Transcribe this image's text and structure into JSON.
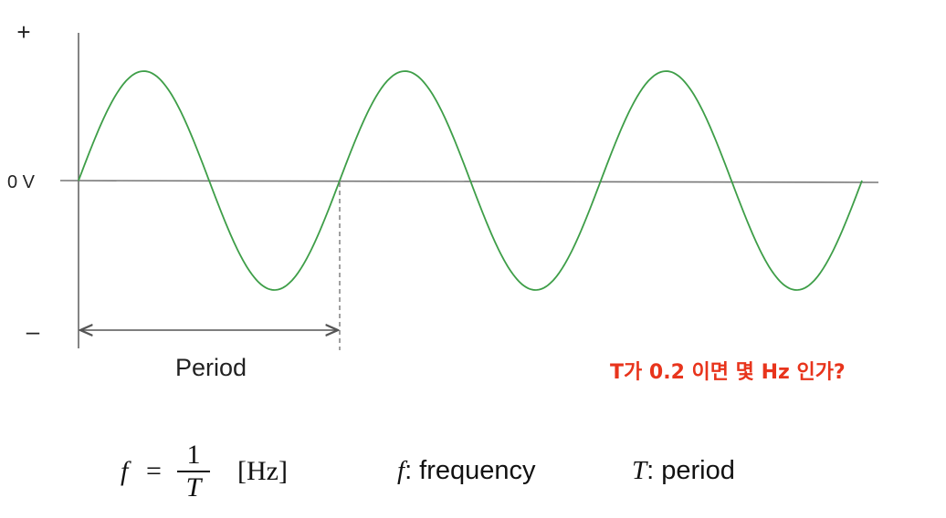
{
  "diagram": {
    "plus_label": "+",
    "zero_label": "0 V",
    "minus_label": "–",
    "period_label": "Period",
    "wave_color": "#3e9e48",
    "axis_color": "#666666",
    "cycles_shown": 3
  },
  "question": {
    "text": "T가 0.2 이면 몇 Hz 인가?",
    "color": "#e8341c"
  },
  "formula": {
    "lhs": "f",
    "equals": "=",
    "numerator": "1",
    "denominator": "T",
    "unit": "[Hz]"
  },
  "legend": {
    "f_symbol": "f",
    "f_text": ": frequency",
    "t_symbol": "T",
    "t_text": ": period"
  }
}
